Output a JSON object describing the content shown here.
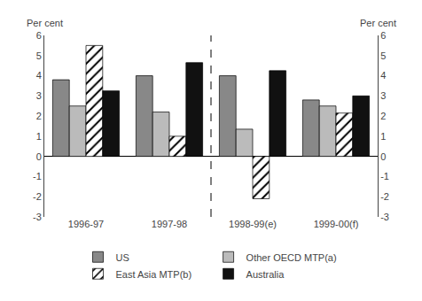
{
  "chart_data": {
    "type": "bar",
    "categories": [
      "1996-97",
      "1997-98",
      "1998-99(e)",
      "1999-00(f)"
    ],
    "series": [
      {
        "name": "US",
        "color": "#888888",
        "values": [
          3.8,
          4.0,
          4.0,
          2.8
        ]
      },
      {
        "name": "Other OECD MTP(a)",
        "color": "#bbbbbb",
        "values": [
          2.5,
          2.2,
          1.35,
          2.5
        ]
      },
      {
        "name": "East Asia MTP(b)",
        "color": "white",
        "values": [
          5.5,
          1.0,
          -2.1,
          2.15
        ]
      },
      {
        "name": "Australia",
        "color": "#111111",
        "values": [
          3.25,
          4.65,
          4.25,
          3.0
        ]
      }
    ],
    "ylabel": "Per cent",
    "y2label": "Per cent",
    "ylim": [
      -3,
      6
    ],
    "yticks": [
      -3,
      -2,
      -1,
      0,
      1,
      2,
      3,
      4,
      5,
      6
    ],
    "y2lim": [
      -3,
      6
    ],
    "y2ticks": [
      -3,
      -2,
      -1,
      0,
      1,
      2,
      3,
      4,
      5,
      6
    ],
    "grid": false,
    "legend": "bottom"
  }
}
